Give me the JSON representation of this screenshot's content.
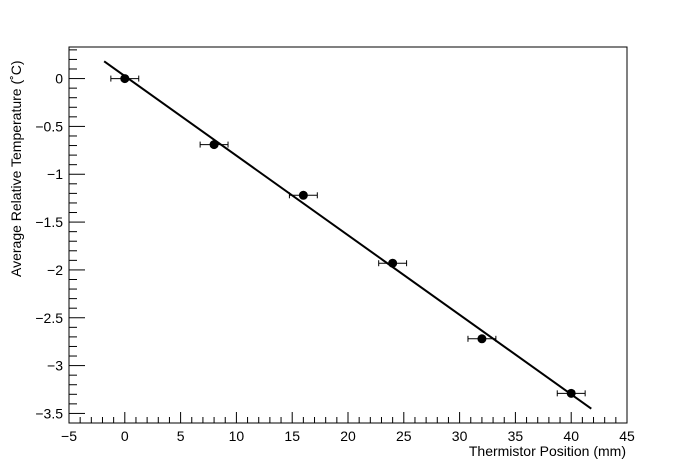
{
  "chart_data": {
    "type": "scatter",
    "title": "",
    "xlabel": "Thermistor Position (mm)",
    "ylabel": "Average Relative Temperature (˚C)",
    "xlim": [
      -5,
      45
    ],
    "ylim": [
      -3.6,
      0.33
    ],
    "xticks": [
      -5,
      0,
      5,
      10,
      15,
      20,
      25,
      30,
      35,
      40,
      45
    ],
    "xtick_labels": [
      "−5",
      "0",
      "5",
      "10",
      "15",
      "20",
      "25",
      "30",
      "35",
      "40",
      "45"
    ],
    "yticks": [
      0,
      -0.5,
      -1,
      -1.5,
      -2,
      -2.5,
      -3,
      -3.5
    ],
    "ytick_labels": [
      "0",
      "−0.5",
      "−1",
      "−1.5",
      "−2",
      "−2.5",
      "−3",
      "−3.5"
    ],
    "grid": false,
    "series": [
      {
        "x": [
          0,
          8,
          16,
          24,
          32,
          40
        ],
        "y": [
          0,
          -0.69,
          -1.22,
          -1.93,
          -2.72,
          -3.29
        ],
        "x_err": [
          1.25,
          1.25,
          1.25,
          1.25,
          1.25,
          1.25
        ],
        "marker": "filled-circle",
        "color": "#000000"
      }
    ],
    "fit_line": {
      "x": [
        -1.85,
        41.8
      ],
      "y": [
        0.18,
        -3.45
      ],
      "color": "#000000"
    }
  }
}
